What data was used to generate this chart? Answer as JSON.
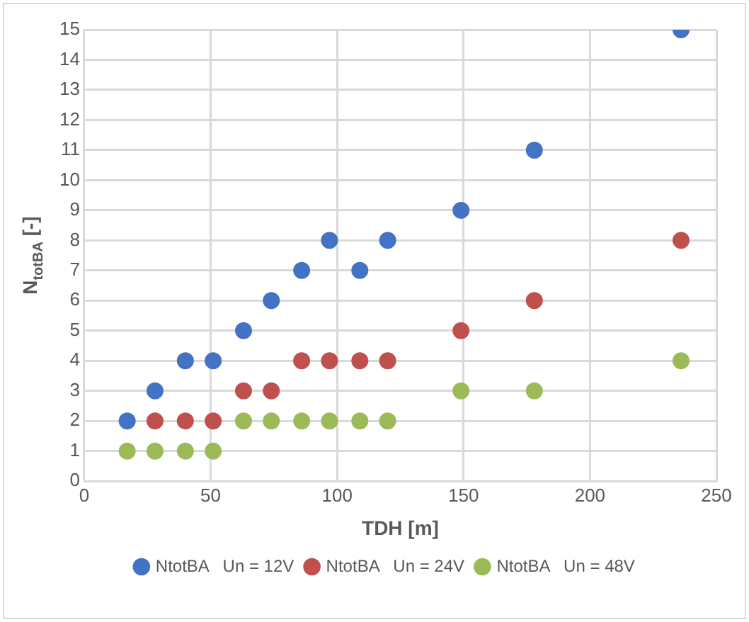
{
  "chart_data": {
    "type": "scatter",
    "xlabel": "TDH [m]",
    "ylabel": "N$_{totBA}$ [-]",
    "xlim": [
      0,
      250
    ],
    "xticks": [
      0,
      50,
      100,
      150,
      200,
      250
    ],
    "ylim": [
      0,
      15
    ],
    "yticks": [
      0,
      1,
      2,
      3,
      4,
      5,
      6,
      7,
      8,
      9,
      10,
      11,
      12,
      13,
      14,
      15
    ],
    "grid": true,
    "legend": "bottom",
    "marker": "circle",
    "series": [
      {
        "name": "NtotBA   Un = 12V",
        "color": "#4472c4",
        "x": [
          17,
          28,
          40,
          51,
          63,
          74,
          86,
          97,
          109,
          120,
          149,
          178,
          236
        ],
        "values": [
          2,
          3,
          4,
          4,
          5,
          6,
          7,
          8,
          7,
          8,
          9,
          11,
          15
        ]
      },
      {
        "name": "NtotBA   Un = 24V",
        "color": "#c0504d",
        "x": [
          28,
          40,
          51,
          63,
          74,
          86,
          97,
          109,
          120,
          149,
          178,
          236
        ],
        "values": [
          2,
          2,
          2,
          3,
          3,
          4,
          4,
          4,
          4,
          5,
          6,
          8
        ]
      },
      {
        "name": "NtotBA   Un = 48V",
        "color": "#9bbb59",
        "x": [
          17,
          28,
          40,
          51,
          63,
          74,
          86,
          97,
          109,
          120,
          149,
          178,
          236
        ],
        "values": [
          1,
          1,
          1,
          1,
          2,
          2,
          2,
          2,
          2,
          2,
          3,
          3,
          4
        ]
      }
    ]
  }
}
